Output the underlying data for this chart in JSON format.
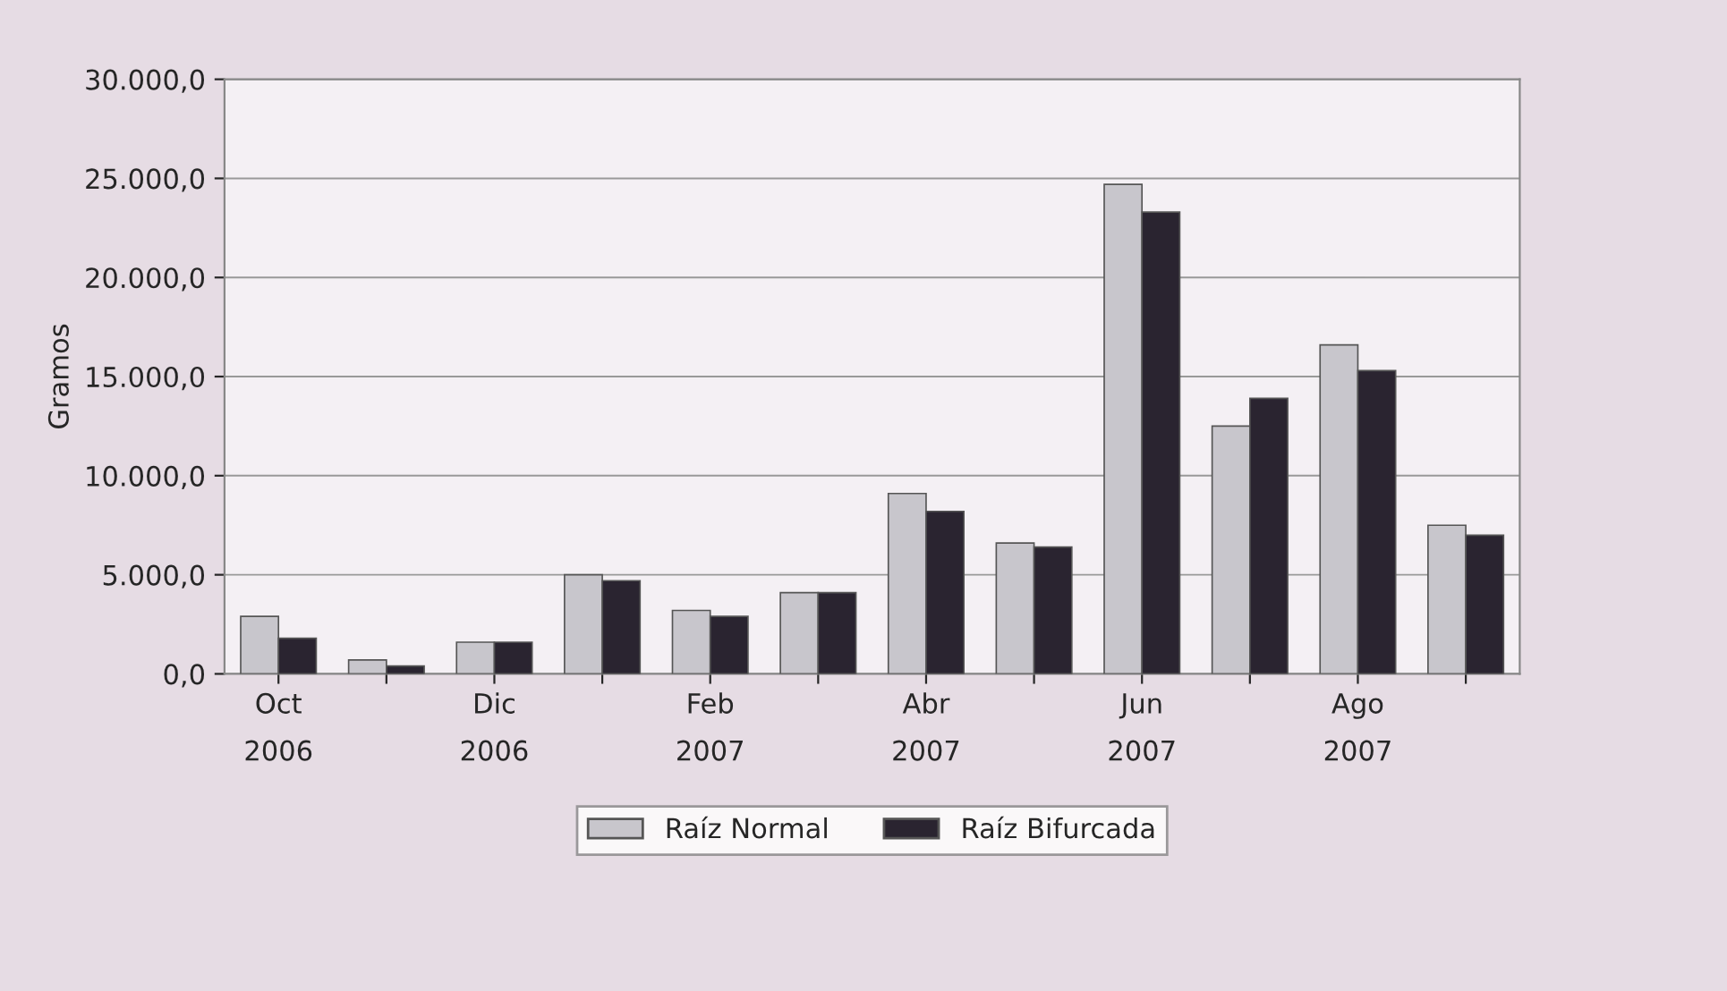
{
  "chart_data": {
    "type": "bar",
    "ylabel": "Gramos",
    "categories": [
      "Oct\n2006",
      null,
      "Dic\n2006",
      null,
      "Feb\n2007",
      null,
      "Abr\n2007",
      null,
      "Jun\n2007",
      null,
      "Ago\n2007",
      null
    ],
    "series": [
      {
        "name": "Raíz Normal",
        "color": "#c8c6cc",
        "values": [
          2900,
          700,
          1600,
          5000,
          3200,
          4100,
          9100,
          6600,
          24700,
          12500,
          16600,
          7500
        ]
      },
      {
        "name": "Raíz Bifurcada",
        "color": "#2a2430",
        "values": [
          1800,
          400,
          1600,
          4700,
          2900,
          4100,
          8200,
          6400,
          23300,
          13900,
          15300,
          7000
        ]
      }
    ],
    "ylim": [
      0,
      30000
    ],
    "yticks": [
      {
        "value": 0,
        "label": "0,0"
      },
      {
        "value": 5000,
        "label": "5.000,0"
      },
      {
        "value": 10000,
        "label": "10.000,0"
      },
      {
        "value": 15000,
        "label": "15.000,0"
      },
      {
        "value": 20000,
        "label": "20.000,0"
      },
      {
        "value": 25000,
        "label": "25.000,0"
      },
      {
        "value": 30000,
        "label": "30.000,0"
      }
    ],
    "grid": "y",
    "legend": "bottom"
  }
}
